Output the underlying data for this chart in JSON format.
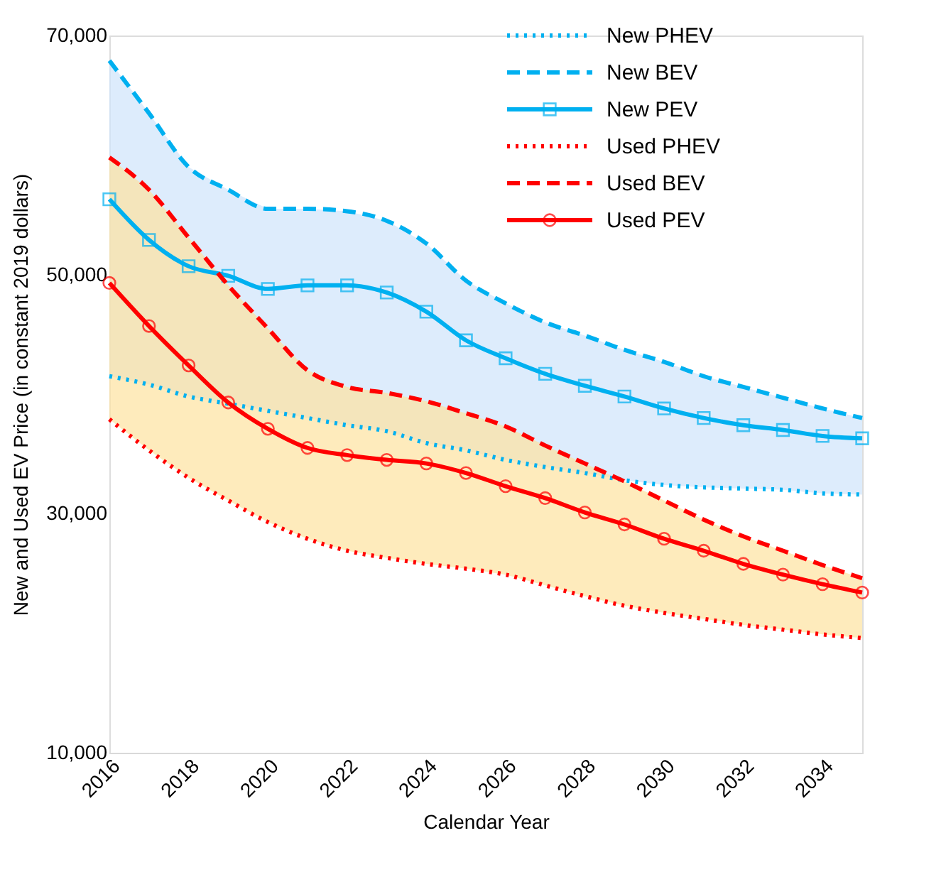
{
  "chart_data": {
    "type": "line",
    "xlabel": "Calendar Year",
    "ylabel": "New and Used EV Price (in constant 2019 dollars)",
    "x": [
      2016,
      2017,
      2018,
      2019,
      2020,
      2021,
      2022,
      2023,
      2024,
      2025,
      2026,
      2027,
      2028,
      2029,
      2030,
      2031,
      2032,
      2033,
      2034,
      2035
    ],
    "xlim": [
      2016,
      2035
    ],
    "xticks": [
      2016,
      2018,
      2020,
      2022,
      2024,
      2026,
      2028,
      2030,
      2032,
      2034
    ],
    "ylim": [
      10000,
      70000
    ],
    "yticks": [
      {
        "value": 10000,
        "label": "10,000"
      },
      {
        "value": 30000,
        "label": "30,000"
      },
      {
        "value": 50000,
        "label": "50,000"
      },
      {
        "value": 70000,
        "label": "70,000"
      }
    ],
    "grid": false,
    "legend": "top right",
    "series": [
      {
        "name": "New PHEV",
        "color": "#00b0f0",
        "line_style": "dotted",
        "marker": "none",
        "values": [
          41500,
          40800,
          39800,
          39200,
          38600,
          38000,
          37400,
          36900,
          35900,
          35300,
          34500,
          33900,
          33400,
          32800,
          32400,
          32200,
          32100,
          32000,
          31700,
          31600
        ]
      },
      {
        "name": "New BEV",
        "color": "#00b0f0",
        "line_style": "dashed",
        "marker": "none",
        "values": [
          67900,
          63500,
          59000,
          57100,
          55500,
          55500,
          55300,
          54500,
          52600,
          49500,
          47600,
          46000,
          44900,
          43700,
          42700,
          41500,
          40600,
          39700,
          38800,
          38000
        ]
      },
      {
        "name": "New PEV",
        "color": "#00b0f0",
        "line_style": "solid",
        "marker": "square",
        "values": [
          56300,
          52900,
          50700,
          49900,
          48800,
          49100,
          49100,
          48500,
          46900,
          44500,
          43000,
          41700,
          40700,
          39800,
          38800,
          38000,
          37400,
          37000,
          36500,
          36300
        ],
        "lower": [
          41500,
          40800,
          39800,
          39200,
          38600,
          38000,
          37400,
          36900,
          35900,
          35300,
          34500,
          33900,
          33400,
          32800,
          32400,
          32200,
          32100,
          32000,
          31700,
          31600
        ],
        "upper": [
          67900,
          63500,
          59000,
          57100,
          55500,
          55500,
          55300,
          54500,
          52600,
          49500,
          47600,
          46000,
          44900,
          43700,
          42700,
          41500,
          40600,
          39700,
          38800,
          38000
        ]
      },
      {
        "name": "Used PHEV",
        "color": "#ff0000",
        "line_style": "dotted",
        "marker": "none",
        "values": [
          37900,
          35300,
          33000,
          31100,
          29300,
          27900,
          26900,
          26300,
          25800,
          25400,
          24900,
          24000,
          23100,
          22300,
          21700,
          21200,
          20700,
          20300,
          19900,
          19600
        ]
      },
      {
        "name": "Used BEV",
        "color": "#ff0000",
        "line_style": "dashed",
        "marker": "none",
        "values": [
          59800,
          57100,
          53100,
          49100,
          45500,
          42000,
          40600,
          40100,
          39400,
          38400,
          37300,
          35700,
          34200,
          32700,
          31100,
          29500,
          28100,
          26900,
          25700,
          24600
        ]
      },
      {
        "name": "Used PEV",
        "color": "#ff0000",
        "line_style": "solid",
        "marker": "circle",
        "values": [
          49300,
          45700,
          42400,
          39300,
          37100,
          35500,
          34900,
          34500,
          34200,
          33400,
          32300,
          31300,
          30100,
          29100,
          27900,
          26900,
          25800,
          24900,
          24100,
          23400
        ],
        "lower": [
          37900,
          35300,
          33000,
          31100,
          29300,
          27900,
          26900,
          26300,
          25800,
          25400,
          24900,
          24000,
          23100,
          22300,
          21700,
          21200,
          20700,
          20300,
          19900,
          19600
        ],
        "upper": [
          59800,
          57100,
          53100,
          49100,
          45500,
          42000,
          40600,
          40100,
          39400,
          38400,
          37300,
          35700,
          34200,
          32700,
          31100,
          29500,
          28100,
          26900,
          25700,
          24600
        ]
      }
    ]
  }
}
